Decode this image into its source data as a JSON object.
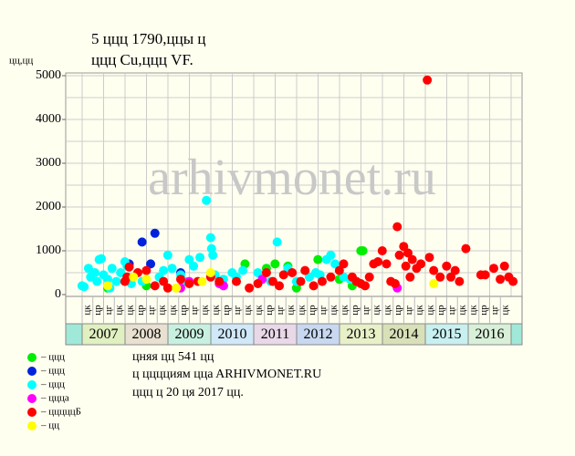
{
  "chart_data": {
    "type": "scatter",
    "title": "5 ццц 1790,ццы ц",
    "subtitle": "ццц Cu,ццц VF.",
    "y_label": "цц,цц",
    "watermark": "arhivmonet.ru",
    "notes": [
      "цняя цц 541 цц",
      "ц цццциям ццa ARHIVMONET.RU",
      "ццц ц 20 ця 2017 цц."
    ],
    "xlim": [
      2006.62,
      2017.26
    ],
    "ylim": [
      0,
      5000
    ],
    "yticks": [
      0,
      1000,
      2000,
      3000,
      4000,
      5000
    ],
    "ygrid": [
      500,
      1000,
      1500,
      2000,
      2500,
      3000,
      3500,
      4000,
      4500,
      5000
    ],
    "years": [
      "2007",
      "2008",
      "2009",
      "2010",
      "2011",
      "2012",
      "2013",
      "2014",
      "2015",
      "2016"
    ],
    "year_colors": [
      "#e0f0c0",
      "#e8e0d0",
      "#c8f0e0",
      "#d0e8f8",
      "#e8d8e8",
      "#c8d8f0",
      "#e8f0c8",
      "#d8e0b8",
      "#c8f0f0",
      "#d8f0d8"
    ],
    "quarter_labels": [
      "цк",
      "цр",
      "цг",
      "цк",
      "цк",
      "цр",
      "цг",
      "цк",
      "цк",
      "цр",
      "цг",
      "цк",
      "цк",
      "цр",
      "цг",
      "цк",
      "цк",
      "цр",
      "цг",
      "цк",
      "цк",
      "цр",
      "цг",
      "цк",
      "цк",
      "цр",
      "цг",
      "цк",
      "цк",
      "цр",
      "цг",
      "цк",
      "цк",
      "цр",
      "цг",
      "цк",
      "цк",
      "цр",
      "цг",
      "цк"
    ],
    "series": [
      {
        "name": "– ццц",
        "color": "#00ee00",
        "x": [
          2010.8,
          2011.3,
          2011.5,
          2011.8,
          2012.0,
          2012.5,
          2013.5,
          2013.55,
          2013.3,
          2013.0,
          2008.5,
          2007.6
        ],
        "values": [
          700,
          600,
          700,
          650,
          150,
          800,
          1000,
          1000,
          200,
          350,
          200,
          150
        ]
      },
      {
        "name": "– ццц",
        "color": "#0022dd",
        "x": [
          2008.1,
          2008.4,
          2008.6,
          2008.7,
          2009.3
        ],
        "values": [
          700,
          1200,
          700,
          1400,
          500
        ]
      },
      {
        "name": "– ццц",
        "color": "#00ffff",
        "x": [
          2007.0,
          2007.05,
          2007.2,
          2007.3,
          2007.35,
          2007.4,
          2007.45,
          2007.5,
          2007.6,
          2007.7,
          2007.8,
          2007.9,
          2008.0,
          2008.05,
          2008.3,
          2008.4,
          2008.8,
          2008.9,
          2009.0,
          2009.1,
          2009.3,
          2009.4,
          2009.5,
          2009.6,
          2009.75,
          2009.9,
          2010.0,
          2010.02,
          2010.05,
          2010.1,
          2010.3,
          2010.5,
          2010.6,
          2010.75,
          2011.1,
          2011.4,
          2011.55,
          2011.8,
          2012.0,
          2012.3,
          2012.45,
          2012.55,
          2012.7,
          2012.8,
          2012.9,
          2013.1,
          2013.25,
          2007.15,
          2007.65,
          2008.15
        ],
        "values": [
          200,
          180,
          400,
          500,
          300,
          800,
          820,
          450,
          350,
          600,
          300,
          500,
          750,
          650,
          500,
          300,
          400,
          550,
          900,
          600,
          450,
          300,
          800,
          650,
          850,
          2150,
          1300,
          1050,
          900,
          450,
          350,
          500,
          400,
          550,
          500,
          300,
          1200,
          600,
          300,
          400,
          500,
          450,
          800,
          900,
          700,
          400,
          350,
          600,
          150,
          250
        ]
      },
      {
        "name": "– ццца",
        "color": "#ff00ff",
        "x": [
          2009.3,
          2009.5,
          2010.2,
          2010.3,
          2011.2,
          2014.35
        ],
        "values": [
          150,
          300,
          250,
          200,
          350,
          150
        ]
      },
      {
        "name": "– цццццБ",
        "color": "#ff0000",
        "x": [
          2008.0,
          2008.05,
          2008.1,
          2008.3,
          2008.5,
          2008.7,
          2008.9,
          2009.0,
          2009.3,
          2009.5,
          2009.7,
          2010.0,
          2010.2,
          2010.6,
          2010.9,
          2011.1,
          2011.3,
          2011.45,
          2011.6,
          2011.7,
          2011.9,
          2012.1,
          2012.2,
          2012.4,
          2012.6,
          2012.8,
          2013.0,
          2013.1,
          2013.3,
          2013.4,
          2013.5,
          2013.7,
          2013.8,
          2013.9,
          2014.0,
          2014.1,
          2014.2,
          2014.35,
          2014.4,
          2014.5,
          2014.55,
          2014.6,
          2014.7,
          2014.8,
          2014.9,
          2015.05,
          2015.1,
          2015.2,
          2015.35,
          2015.5,
          2015.6,
          2015.7,
          2015.8,
          2015.95,
          2016.3,
          2016.4,
          2016.6,
          2016.75,
          2016.85,
          2016.95,
          2017.05,
          2014.3,
          2013.6,
          2014.65
        ],
        "values": [
          300,
          400,
          630,
          500,
          550,
          200,
          300,
          150,
          350,
          250,
          300,
          400,
          300,
          300,
          150,
          250,
          500,
          300,
          200,
          450,
          500,
          300,
          550,
          200,
          300,
          400,
          550,
          700,
          400,
          300,
          250,
          400,
          700,
          750,
          1000,
          700,
          300,
          1550,
          900,
          1100,
          650,
          950,
          800,
          600,
          700,
          4900,
          850,
          550,
          400,
          650,
          400,
          550,
          300,
          1050,
          450,
          450,
          600,
          350,
          650,
          400,
          300,
          250,
          200,
          400
        ]
      },
      {
        "name": "– цц",
        "color": "#ffff00",
        "x": [
          2007.6,
          2008.2,
          2008.5,
          2009.2,
          2010.0,
          2015.2,
          2009.8
        ],
        "values": [
          200,
          400,
          350,
          150,
          500,
          250,
          300
        ]
      }
    ]
  }
}
